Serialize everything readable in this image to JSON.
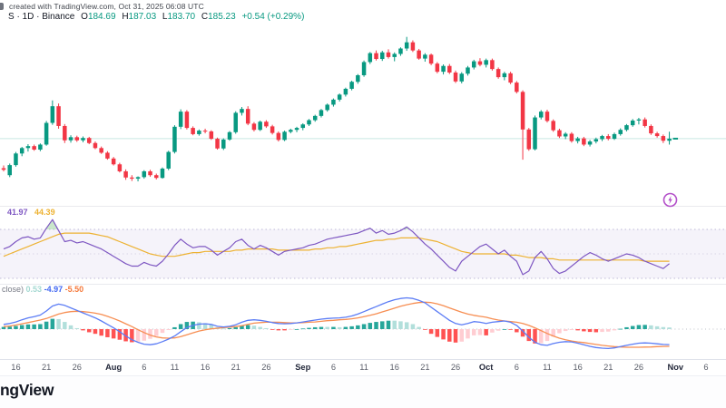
{
  "header": {
    "line1": "created with TradingView.com, Oct 31, 2025 06:08 UTC",
    "symbol": "S · 1D · Binance",
    "ohlc": {
      "o_label": "O",
      "o": "184.69",
      "h_label": "H",
      "h": "187.03",
      "l_label": "L",
      "l": "183.70",
      "c_label": "C",
      "c": "185.23",
      "change": "+0.54 (+0.29%)"
    }
  },
  "indicators": {
    "rsi": {
      "value_line": "41.97",
      "value_ma": "44.39"
    },
    "macd": {
      "label": "close)",
      "value_hist": "0.53",
      "value_macd": "-4.97",
      "value_signal": "-5.50"
    }
  },
  "footer": {
    "logo": "ngView"
  },
  "colors": {
    "up": "#089981",
    "down": "#f23645",
    "rsi_line": "#7e57c2",
    "rsi_ma": "#edb232",
    "rsi_band": "#9575cd",
    "macd_line": "#5b7cf5",
    "signal_line": "#f78e52",
    "hist_pos": "#26a69a",
    "hist_pos_light": "#b2dfdb",
    "hist_neg": "#ff5252",
    "hist_neg_light": "#ffcdd2",
    "flash": "#b34fc9",
    "tick_day": "#5a5e69",
    "tick_month": "#23283a",
    "separator": "#e9eaee"
  },
  "chart_data": [
    {
      "type": "candlestick",
      "pane": "price",
      "title": "S · 1D · Binance",
      "timeframe": "1D",
      "last_price": 185.23,
      "ylim": [
        170,
        214
      ],
      "ohlc": [
        [
          177.6,
          178.3,
          176.8,
          177.2
        ],
        [
          175.8,
          178.8,
          175.3,
          178.4
        ],
        [
          178.4,
          181.8,
          178.0,
          181.4
        ],
        [
          181.4,
          183.1,
          180.7,
          182.8
        ],
        [
          182.8,
          183.8,
          181.9,
          183.3
        ],
        [
          183.3,
          183.7,
          182.1,
          182.4
        ],
        [
          182.4,
          184.0,
          182.0,
          183.7
        ],
        [
          183.7,
          189.8,
          183.4,
          189.3
        ],
        [
          189.3,
          195.1,
          188.8,
          193.6
        ],
        [
          193.6,
          194.3,
          187.8,
          188.5
        ],
        [
          188.5,
          189.0,
          184.1,
          184.8
        ],
        [
          184.8,
          186.1,
          184.2,
          185.6
        ],
        [
          185.6,
          186.0,
          184.4,
          184.8
        ],
        [
          184.8,
          185.8,
          184.3,
          185.4
        ],
        [
          185.4,
          185.7,
          183.8,
          184.1
        ],
        [
          184.1,
          184.5,
          182.5,
          182.8
        ],
        [
          182.8,
          183.2,
          181.3,
          181.6
        ],
        [
          181.6,
          182.0,
          179.8,
          180.1
        ],
        [
          180.1,
          180.5,
          178.3,
          178.6
        ],
        [
          178.6,
          179.0,
          176.5,
          176.8
        ],
        [
          176.8,
          177.3,
          174.6,
          175.2
        ],
        [
          175.2,
          175.8,
          174.3,
          174.9
        ],
        [
          174.9,
          175.5,
          174.2,
          175.3
        ],
        [
          175.3,
          177.1,
          174.9,
          176.8
        ],
        [
          176.8,
          177.2,
          175.4,
          175.8
        ],
        [
          175.8,
          176.2,
          174.7,
          175.1
        ],
        [
          175.1,
          177.8,
          174.9,
          177.5
        ],
        [
          177.5,
          182.1,
          177.1,
          181.8
        ],
        [
          181.8,
          188.7,
          181.4,
          188.3
        ],
        [
          188.3,
          192.8,
          187.7,
          192.2
        ],
        [
          192.2,
          192.6,
          187.6,
          188.0
        ],
        [
          188.0,
          188.4,
          186.1,
          186.4
        ],
        [
          186.4,
          187.6,
          186.0,
          187.3
        ],
        [
          187.3,
          187.8,
          186.6,
          187.1
        ],
        [
          187.1,
          187.4,
          184.9,
          185.2
        ],
        [
          185.2,
          185.5,
          182.4,
          182.7
        ],
        [
          182.7,
          185.3,
          182.3,
          185.0
        ],
        [
          185.0,
          187.2,
          184.7,
          186.9
        ],
        [
          186.9,
          192.3,
          186.5,
          191.9
        ],
        [
          191.9,
          193.4,
          191.2,
          192.9
        ],
        [
          192.9,
          193.6,
          188.7,
          189.1
        ],
        [
          189.1,
          189.5,
          187.1,
          187.5
        ],
        [
          187.5,
          189.9,
          187.2,
          189.6
        ],
        [
          189.6,
          190.0,
          188.0,
          188.4
        ],
        [
          188.4,
          188.8,
          186.3,
          186.7
        ],
        [
          186.7,
          187.1,
          184.5,
          184.9
        ],
        [
          184.9,
          187.3,
          184.6,
          187.0
        ],
        [
          187.0,
          187.8,
          186.6,
          187.5
        ],
        [
          187.5,
          188.3,
          186.9,
          188.0
        ],
        [
          188.0,
          189.2,
          187.4,
          188.9
        ],
        [
          188.9,
          190.3,
          188.5,
          190.0
        ],
        [
          190.0,
          191.4,
          189.6,
          191.1
        ],
        [
          191.1,
          192.9,
          190.7,
          192.6
        ],
        [
          192.6,
          194.3,
          192.2,
          194.0
        ],
        [
          194.0,
          195.6,
          193.5,
          195.3
        ],
        [
          195.3,
          196.9,
          194.8,
          196.6
        ],
        [
          196.6,
          198.4,
          196.1,
          198.1
        ],
        [
          198.1,
          200.2,
          197.7,
          199.9
        ],
        [
          199.9,
          201.9,
          199.4,
          201.6
        ],
        [
          201.6,
          205.4,
          201.2,
          205.0
        ],
        [
          205.0,
          207.6,
          204.5,
          207.3
        ],
        [
          207.3,
          208.0,
          205.4,
          205.8
        ],
        [
          205.8,
          207.9,
          205.3,
          207.5
        ],
        [
          207.5,
          208.3,
          205.9,
          206.3
        ],
        [
          206.3,
          207.5,
          205.2,
          207.1
        ],
        [
          207.1,
          208.8,
          206.6,
          208.5
        ],
        [
          208.5,
          211.5,
          207.9,
          210.1
        ],
        [
          210.1,
          210.6,
          207.6,
          208.0
        ],
        [
          208.0,
          208.4,
          205.6,
          205.9
        ],
        [
          205.9,
          207.3,
          205.1,
          206.9
        ],
        [
          206.9,
          207.2,
          204.2,
          204.6
        ],
        [
          204.6,
          205.0,
          202.1,
          202.5
        ],
        [
          202.5,
          204.4,
          201.8,
          204.0
        ],
        [
          204.0,
          204.5,
          201.9,
          202.3
        ],
        [
          202.3,
          202.8,
          199.6,
          200.0
        ],
        [
          200.0,
          202.4,
          199.5,
          202.0
        ],
        [
          202.0,
          204.0,
          201.5,
          203.6
        ],
        [
          203.6,
          205.6,
          203.1,
          205.2
        ],
        [
          205.2,
          206.0,
          203.9,
          204.3
        ],
        [
          204.3,
          205.9,
          203.6,
          205.5
        ],
        [
          205.5,
          205.9,
          202.8,
          203.2
        ],
        [
          203.2,
          203.6,
          200.7,
          201.1
        ],
        [
          201.1,
          202.5,
          200.3,
          202.1
        ],
        [
          202.1,
          202.5,
          199.3,
          199.7
        ],
        [
          199.7,
          200.1,
          196.9,
          197.3
        ],
        [
          197.3,
          197.7,
          179.8,
          187.6
        ],
        [
          187.6,
          188.0,
          182.1,
          182.5
        ],
        [
          182.5,
          191.2,
          182.2,
          190.7
        ],
        [
          190.7,
          192.6,
          190.2,
          192.2
        ],
        [
          192.2,
          192.7,
          189.4,
          189.8
        ],
        [
          189.8,
          190.2,
          187.0,
          187.4
        ],
        [
          187.4,
          187.8,
          185.4,
          185.8
        ],
        [
          185.8,
          186.9,
          185.1,
          186.5
        ],
        [
          186.5,
          186.9,
          184.2,
          184.6
        ],
        [
          184.6,
          185.7,
          184.0,
          185.3
        ],
        [
          185.3,
          185.7,
          183.3,
          183.7
        ],
        [
          183.7,
          184.9,
          183.2,
          184.5
        ],
        [
          184.5,
          185.5,
          184.0,
          185.1
        ],
        [
          185.1,
          186.2,
          184.6,
          185.9
        ],
        [
          185.9,
          186.4,
          184.8,
          185.2
        ],
        [
          185.2,
          186.8,
          184.9,
          186.4
        ],
        [
          186.4,
          187.9,
          186.0,
          187.5
        ],
        [
          187.5,
          189.0,
          187.1,
          188.7
        ],
        [
          188.7,
          190.3,
          188.3,
          189.9
        ],
        [
          189.9,
          190.6,
          188.9,
          190.2
        ],
        [
          190.2,
          190.7,
          188.1,
          188.5
        ],
        [
          188.5,
          188.9,
          186.2,
          186.6
        ],
        [
          186.6,
          187.0,
          185.5,
          185.9
        ],
        [
          185.9,
          186.3,
          184.1,
          184.69
        ],
        [
          184.69,
          187.03,
          183.7,
          185.23
        ]
      ],
      "x_ticks": [
        {
          "label": "16",
          "i": 2
        },
        {
          "label": "21",
          "i": 7
        },
        {
          "label": "26",
          "i": 12
        },
        {
          "label": "Aug",
          "i": 18
        },
        {
          "label": "6",
          "i": 23
        },
        {
          "label": "11",
          "i": 28
        },
        {
          "label": "16",
          "i": 33
        },
        {
          "label": "21",
          "i": 38
        },
        {
          "label": "26",
          "i": 43
        },
        {
          "label": "Sep",
          "i": 49
        },
        {
          "label": "6",
          "i": 54
        },
        {
          "label": "11",
          "i": 59
        },
        {
          "label": "16",
          "i": 64
        },
        {
          "label": "21",
          "i": 69
        },
        {
          "label": "26",
          "i": 74
        },
        {
          "label": "Oct",
          "i": 79
        },
        {
          "label": "6",
          "i": 84
        },
        {
          "label": "11",
          "i": 89
        },
        {
          "label": "16",
          "i": 94
        },
        {
          "label": "21",
          "i": 99
        },
        {
          "label": "26",
          "i": 104
        },
        {
          "label": "Nov",
          "i": 110
        },
        {
          "label": "6",
          "i": 115
        }
      ]
    },
    {
      "type": "line",
      "pane": "rsi",
      "name": "RSI",
      "levels": [
        70,
        50,
        30
      ],
      "ylim": [
        20,
        90
      ],
      "series": [
        {
          "name": "RSI",
          "color": "#7e57c2",
          "values": [
            54,
            56,
            60,
            63,
            64,
            62,
            63,
            71,
            78,
            69,
            60,
            61,
            59,
            60,
            58,
            56,
            54,
            51,
            48,
            45,
            42,
            40,
            40,
            43,
            41,
            40,
            44,
            50,
            57,
            62,
            58,
            55,
            56,
            56,
            53,
            49,
            52,
            55,
            60,
            62,
            57,
            54,
            57,
            55,
            52,
            49,
            52,
            53,
            54,
            55,
            57,
            58,
            60,
            62,
            63,
            64,
            65,
            66,
            67,
            69,
            71,
            67,
            69,
            66,
            67,
            69,
            72,
            68,
            63,
            58,
            54,
            49,
            44,
            39,
            36,
            44,
            48,
            52,
            56,
            58,
            54,
            50,
            53,
            48,
            44,
            33,
            36,
            47,
            52,
            46,
            38,
            34,
            36,
            40,
            44,
            48,
            51,
            49,
            46,
            44,
            46,
            48,
            50,
            49,
            47,
            44,
            42,
            40,
            38,
            42
          ]
        },
        {
          "name": "RSI-based MA",
          "color": "#edb232",
          "values": [
            48,
            50,
            52,
            54,
            56,
            58,
            60,
            62,
            64,
            66,
            67,
            67,
            67,
            67,
            67,
            66,
            65,
            64,
            62,
            60,
            58,
            56,
            54,
            52,
            50,
            49,
            48,
            48,
            48,
            49,
            50,
            51,
            51,
            52,
            52,
            52,
            52,
            52,
            53,
            53,
            54,
            54,
            54,
            54,
            54,
            53,
            53,
            53,
            53,
            53,
            53,
            54,
            54,
            55,
            55,
            56,
            56,
            57,
            58,
            59,
            60,
            61,
            61,
            62,
            62,
            63,
            63,
            63,
            63,
            62,
            61,
            60,
            58,
            56,
            54,
            52,
            51,
            50,
            50,
            50,
            50,
            50,
            50,
            49,
            49,
            48,
            47,
            47,
            47,
            46,
            46,
            45,
            45,
            45,
            45,
            45,
            45,
            45,
            45,
            45,
            45,
            45,
            45,
            45,
            45,
            44,
            44,
            44,
            44,
            44
          ]
        }
      ]
    },
    {
      "type": "macd",
      "pane": "macd",
      "name": "MACD",
      "macd": [
        1.5,
        1.8,
        2.3,
        3.0,
        3.6,
        4.0,
        4.5,
        5.8,
        7.4,
        8.0,
        7.6,
        6.8,
        6.0,
        5.2,
        4.4,
        3.6,
        2.6,
        1.5,
        0.4,
        -0.8,
        -2.2,
        -3.4,
        -4.2,
        -4.8,
        -5.0,
        -4.7,
        -4.0,
        -3.2,
        -2.2,
        -0.8,
        0.5,
        1.2,
        1.6,
        1.7,
        1.5,
        0.9,
        0.7,
        0.9,
        1.4,
        2.2,
        2.8,
        3.0,
        2.8,
        2.5,
        2.1,
        1.8,
        1.7,
        1.8,
        2.0,
        2.3,
        2.6,
        2.9,
        3.2,
        3.4,
        3.5,
        3.6,
        3.8,
        4.2,
        4.8,
        5.6,
        6.4,
        7.2,
        8.0,
        8.8,
        9.4,
        9.8,
        10.0,
        9.8,
        9.2,
        8.4,
        7.0,
        5.6,
        4.2,
        2.8,
        1.8,
        1.4,
        1.8,
        2.4,
        2.2,
        1.8,
        2.2,
        2.4,
        2.6,
        2.2,
        1.2,
        -0.6,
        -2.6,
        -4.2,
        -5.0,
        -5.2,
        -4.6,
        -4.2,
        -4.0,
        -4.1,
        -4.5,
        -5.0,
        -5.5,
        -5.9,
        -6.1,
        -6.2,
        -6.0,
        -5.6,
        -5.2,
        -4.8,
        -4.5,
        -4.4,
        -4.5,
        -4.7,
        -4.9,
        -4.97
      ],
      "signal": [
        0.8,
        1.0,
        1.3,
        1.7,
        2.1,
        2.5,
        2.9,
        3.4,
        4.1,
        4.8,
        5.3,
        5.6,
        5.7,
        5.6,
        5.4,
        5.1,
        4.7,
        4.1,
        3.4,
        2.6,
        1.7,
        0.8,
        -0.2,
        -1.1,
        -1.9,
        -2.5,
        -2.8,
        -2.9,
        -2.8,
        -2.4,
        -1.8,
        -1.2,
        -0.6,
        -0.2,
        0.1,
        0.3,
        0.5,
        0.6,
        0.8,
        1.1,
        1.5,
        1.9,
        2.1,
        2.2,
        2.2,
        2.2,
        2.1,
        2.0,
        2.0,
        2.1,
        2.2,
        2.3,
        2.5,
        2.7,
        2.8,
        3.0,
        3.1,
        3.3,
        3.6,
        4.0,
        4.4,
        4.9,
        5.5,
        6.1,
        6.7,
        7.3,
        7.8,
        8.2,
        8.5,
        8.6,
        8.5,
        8.1,
        7.5,
        6.8,
        6.1,
        5.4,
        4.8,
        4.4,
        4.1,
        3.8,
        3.3,
        2.9,
        2.6,
        2.4,
        2.2,
        1.8,
        1.2,
        0.4,
        -0.5,
        -1.4,
        -2.2,
        -2.9,
        -3.4,
        -3.8,
        -4.1,
        -4.3,
        -4.6,
        -4.9,
        -5.2,
        -5.4,
        -5.6,
        -5.7,
        -5.8,
        -5.8,
        -5.8,
        -5.75,
        -5.7,
        -5.6,
        -5.55,
        -5.5
      ]
    }
  ]
}
